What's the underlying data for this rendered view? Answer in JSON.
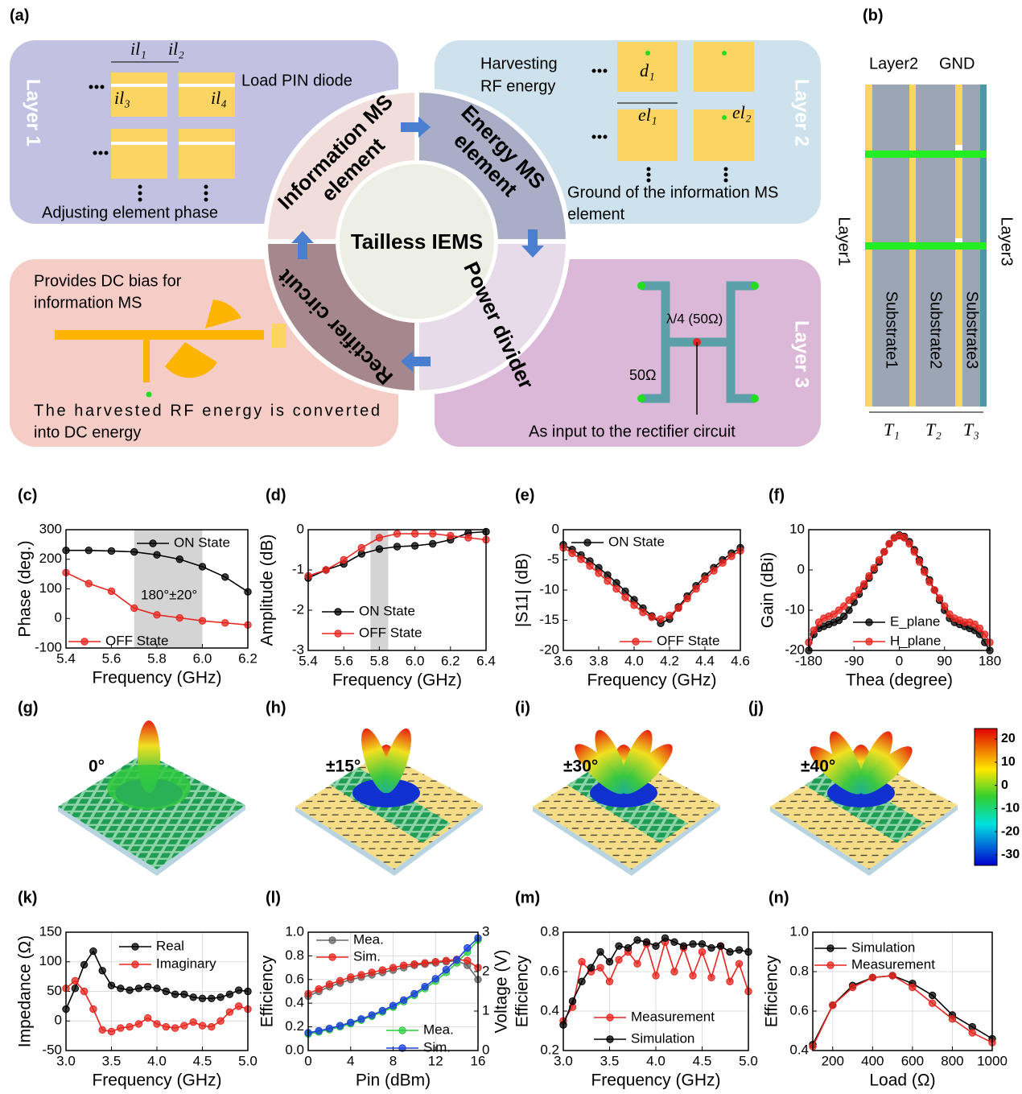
{
  "diagram": {
    "a": {
      "label": "(a)",
      "layer1": "Layer 1",
      "layer2": "Layer 2",
      "layer3": "Layer 3",
      "load": "Load PIN diode",
      "adjust": "Adjusting element phase",
      "harvest": [
        "Harvesting",
        "RF energy"
      ],
      "ground": [
        "Ground of the information MS",
        "element"
      ],
      "bias": [
        "Provides DC bias for",
        "information MS"
      ],
      "converted": [
        "The harvested RF energy is converted",
        "into DC energy"
      ],
      "input": "As input to the rectifier circuit",
      "center": "Tailless IEMS",
      "info": [
        "Information MS",
        "element"
      ],
      "energy": [
        "Energy MS",
        "element"
      ],
      "power": "Power divider",
      "rectifier": "Rectifier circuit",
      "quarter": "λ/4 (50Ω)",
      "ohm": "50Ω",
      "il1": "il₁",
      "il2": "il₂",
      "il3": "il₃",
      "il4": "il₄",
      "d1": "d₁",
      "el1": "el₁",
      "el2": "el₂"
    },
    "b": {
      "label": "(b)",
      "layer2": "Layer2",
      "gnd": "GND",
      "layer1": "Layer1",
      "layer3": "Layer3",
      "sub1": "Substrate1",
      "sub2": "Substrate2",
      "sub3": "Substrate3",
      "t1": "T₁",
      "t2": "T₂",
      "t3": "T₃"
    }
  },
  "patterns": {
    "panels": [
      "(g)",
      "(h)",
      "(i)",
      "(j)"
    ],
    "labels": [
      "0°",
      "±15°",
      "±30°",
      "±40°"
    ],
    "colorbar": {
      "ticks": [
        20,
        10,
        0,
        -10,
        -20,
        -30
      ]
    }
  },
  "chart_data": [
    {
      "type": "line",
      "label": "(c)",
      "xlabel": "Frequency (GHz)",
      "ylabel": "Phase (deg.)",
      "x": [
        5.4,
        5.5,
        5.6,
        5.7,
        5.8,
        5.9,
        6.0,
        6.1,
        6.2
      ],
      "xlim": [
        5.4,
        6.2
      ],
      "xticks": [
        5.4,
        5.6,
        5.8,
        {
          "value": 6,
          "label": "6.0"
        },
        6.2
      ],
      "ylim": [
        -100,
        300
      ],
      "yticks": [
        -100,
        0,
        100,
        200,
        300
      ],
      "shade": [
        5.7,
        6.0
      ],
      "annotation": "180°±20°",
      "grid": false,
      "series": [
        {
          "name": "ON State",
          "color": "#000000",
          "values": [
            230,
            230,
            228,
            225,
            215,
            200,
            175,
            140,
            90
          ]
        },
        {
          "name": "OFF State",
          "color": "#e8251f",
          "values": [
            155,
            118,
            92,
            35,
            12,
            2,
            -8,
            -15,
            -22
          ]
        }
      ]
    },
    {
      "type": "line",
      "label": "(d)",
      "xlabel": "Frequency (GHz)",
      "ylabel": "Amplitude (dB)",
      "x": [
        5.4,
        5.5,
        5.6,
        5.7,
        5.8,
        5.9,
        6.0,
        6.1,
        6.2,
        6.3,
        6.4
      ],
      "xlim": [
        5.4,
        6.4
      ],
      "xticks": [
        5.4,
        5.6,
        5.8,
        {
          "value": 6,
          "label": "6.0"
        },
        6.2,
        6.4
      ],
      "ylim": [
        -3,
        0
      ],
      "yticks": [
        -3,
        -2,
        -1,
        0
      ],
      "shade": [
        5.75,
        5.85
      ],
      "grid": false,
      "series": [
        {
          "name": "ON State",
          "color": "#000000",
          "values": [
            -1.2,
            -1.0,
            -0.85,
            -0.6,
            -0.48,
            -0.42,
            -0.4,
            -0.35,
            -0.25,
            -0.08,
            -0.05
          ]
        },
        {
          "name": "OFF State",
          "color": "#e8251f",
          "values": [
            -1.15,
            -1.0,
            -0.75,
            -0.45,
            -0.2,
            -0.1,
            -0.1,
            -0.1,
            -0.15,
            -0.2,
            -0.25
          ]
        }
      ]
    },
    {
      "type": "line",
      "label": "(e)",
      "xlabel": "Frequency (GHz)",
      "ylabel": "|S11| (dB)",
      "x": [
        3.6,
        3.65,
        3.7,
        3.75,
        3.8,
        3.85,
        3.9,
        3.95,
        4.0,
        4.05,
        4.1,
        4.15,
        4.2,
        4.25,
        4.3,
        4.35,
        4.4,
        4.45,
        4.5,
        4.55,
        4.6
      ],
      "xlim": [
        3.6,
        4.6
      ],
      "xticks": [
        3.6,
        3.8,
        {
          "value": 4,
          "label": "4.0"
        },
        4.2,
        4.4,
        4.6
      ],
      "ylim": [
        -20,
        0
      ],
      "yticks": [
        -20,
        -15,
        -10,
        -5,
        0
      ],
      "grid": false,
      "series": [
        {
          "name": "ON State",
          "color": "#000000",
          "values": [
            -2.5,
            -3.3,
            -4.2,
            -5.2,
            -6.3,
            -7.5,
            -8.8,
            -10.2,
            -11.6,
            -13,
            -14.3,
            -15.5,
            -14.8,
            -12.8,
            -11,
            -9.3,
            -7.7,
            -6.3,
            -5,
            -3.9,
            -3
          ]
        },
        {
          "name": "OFF State",
          "color": "#e8251f",
          "values": [
            -3,
            -3.9,
            -4.9,
            -6,
            -7.2,
            -8.5,
            -9.8,
            -11.2,
            -12.5,
            -13.7,
            -14.5,
            -14.8,
            -14.2,
            -13,
            -11.4,
            -9.8,
            -8.2,
            -6.8,
            -5.5,
            -4.4,
            -3.5
          ]
        }
      ]
    },
    {
      "type": "line",
      "label": "(f)",
      "xlabel": "Thea (degree)",
      "ylabel": "Gain (dBi)",
      "x": [
        -180,
        -170,
        -160,
        -150,
        -140,
        -130,
        -120,
        -110,
        -100,
        -90,
        -80,
        -70,
        -60,
        -50,
        -40,
        -30,
        -20,
        -10,
        0,
        10,
        20,
        30,
        40,
        50,
        60,
        70,
        80,
        90,
        100,
        110,
        120,
        130,
        140,
        150,
        160,
        170,
        180
      ],
      "xlim": [
        -180,
        180
      ],
      "xticks": [
        -180,
        -90,
        0,
        90,
        180
      ],
      "ylim": [
        -20,
        10
      ],
      "yticks": [
        -20,
        -10,
        0,
        10
      ],
      "grid": false,
      "series": [
        {
          "name": "E_plane",
          "color": "#000000",
          "values": [
            -20,
            -16,
            -14.5,
            -14,
            -13.5,
            -13,
            -12.5,
            -11.5,
            -10,
            -8,
            -6,
            -4,
            -2,
            0,
            2,
            4.5,
            6.5,
            8,
            8.7,
            8.3,
            7,
            5,
            2.5,
            0,
            -2.5,
            -5,
            -7.5,
            -10,
            -12,
            -13,
            -13.5,
            -14,
            -14.5,
            -15,
            -16,
            -18,
            -20
          ]
        },
        {
          "name": "H_plane",
          "color": "#e8251f",
          "values": [
            -18,
            -15,
            -13,
            -12,
            -11.5,
            -11,
            -10,
            -9,
            -7.5,
            -6.5,
            -5,
            -3.5,
            -1.5,
            0.5,
            2.5,
            4.5,
            6.5,
            8,
            8.5,
            8,
            6.5,
            4.5,
            2,
            -0.5,
            -3,
            -5,
            -7,
            -9,
            -11,
            -12,
            -12.5,
            -13,
            -13,
            -13.5,
            -14.5,
            -16,
            -18
          ]
        }
      ]
    },
    {
      "type": "line",
      "label": "(k)",
      "xlabel": "Frequency (GHz)",
      "ylabel": "Impedance (Ω)",
      "x": [
        3.0,
        3.1,
        3.2,
        3.3,
        3.4,
        3.5,
        3.6,
        3.7,
        3.8,
        3.9,
        4.0,
        4.1,
        4.2,
        4.3,
        4.4,
        4.5,
        4.6,
        4.7,
        4.8,
        4.9,
        5.0
      ],
      "xlim": [
        3,
        5
      ],
      "xticks": [
        {
          "value": 3,
          "label": "3.0"
        },
        3.5,
        {
          "value": 4,
          "label": "4.0"
        },
        4.5,
        {
          "value": 5,
          "label": "5.0"
        }
      ],
      "ylim": [
        -50,
        150
      ],
      "yticks": [
        -50,
        0,
        50,
        100,
        150
      ],
      "grid": true,
      "series": [
        {
          "name": "Real",
          "color": "#000000",
          "values": [
            20,
            55,
            95,
            118,
            85,
            60,
            55,
            52,
            55,
            58,
            55,
            50,
            45,
            45,
            40,
            38,
            38,
            40,
            45,
            52,
            50
          ]
        },
        {
          "name": "Imaginary",
          "color": "#e8251f",
          "values": [
            55,
            68,
            50,
            20,
            -15,
            -18,
            -12,
            -10,
            -5,
            5,
            -5,
            -10,
            -12,
            -8,
            -2,
            -8,
            -10,
            0,
            15,
            25,
            20
          ]
        }
      ]
    },
    {
      "type": "line",
      "label": "(l)",
      "xlabel": "Pin (dBm)",
      "ylabel": "Efficiency",
      "y2label": "Voltage (V)",
      "x": [
        0,
        1,
        2,
        3,
        4,
        5,
        6,
        7,
        8,
        9,
        10,
        11,
        12,
        13,
        14,
        15,
        16
      ],
      "xlim": [
        0,
        16
      ],
      "xticks": [
        0,
        4,
        8,
        12,
        16
      ],
      "ylim": [
        0,
        1
      ],
      "yticks": [
        {
          "value": 0,
          "label": "0.0"
        },
        0.2,
        0.4,
        0.6,
        0.8,
        {
          "value": 1,
          "label": "1.0"
        }
      ],
      "y2lim": [
        0,
        3
      ],
      "y2ticks": [
        0,
        1,
        2,
        3
      ],
      "grid": true,
      "series": [
        {
          "name": "Mea.",
          "color": "#666666",
          "values": [
            0.46,
            0.5,
            0.54,
            0.57,
            0.6,
            0.62,
            0.64,
            0.66,
            0.68,
            0.7,
            0.72,
            0.73,
            0.74,
            0.75,
            0.76,
            0.72,
            0.6
          ]
        },
        {
          "name": "Sim.",
          "color": "#e8251f",
          "values": [
            0.48,
            0.52,
            0.56,
            0.59,
            0.62,
            0.64,
            0.66,
            0.68,
            0.7,
            0.72,
            0.73,
            0.74,
            0.75,
            0.76,
            0.77,
            0.76,
            0.7
          ]
        },
        {
          "name": "Mea.",
          "color": "#2ecc40",
          "axis": "y2",
          "values": [
            0.42,
            0.47,
            0.53,
            0.6,
            0.68,
            0.77,
            0.87,
            0.98,
            1.1,
            1.24,
            1.4,
            1.57,
            1.76,
            1.98,
            2.22,
            2.5,
            2.8
          ]
        },
        {
          "name": "Sim.",
          "color": "#1f3fdf",
          "axis": "y2",
          "values": [
            0.45,
            0.5,
            0.56,
            0.63,
            0.71,
            0.8,
            0.9,
            1.01,
            1.14,
            1.28,
            1.44,
            1.62,
            1.82,
            2.05,
            2.3,
            2.6,
            2.85
          ]
        }
      ]
    },
    {
      "type": "line",
      "label": "(m)",
      "xlabel": "Frequency (GHz)",
      "ylabel": "Efficiency",
      "x": [
        3.0,
        3.1,
        3.2,
        3.3,
        3.4,
        3.5,
        3.6,
        3.7,
        3.8,
        3.9,
        4.0,
        4.1,
        4.2,
        4.3,
        4.4,
        4.5,
        4.6,
        4.7,
        4.8,
        4.9,
        5.0
      ],
      "xlim": [
        3,
        5
      ],
      "xticks": [
        {
          "value": 3,
          "label": "3.0"
        },
        3.5,
        {
          "value": 4,
          "label": "4.0"
        },
        4.5,
        {
          "value": 5,
          "label": "5.0"
        }
      ],
      "ylim": [
        0.2,
        0.8
      ],
      "yticks": [
        0.2,
        0.4,
        0.6,
        0.8
      ],
      "grid": true,
      "series": [
        {
          "name": "Measurement",
          "color": "#e8251f",
          "values": [
            0.35,
            0.42,
            0.65,
            0.6,
            0.62,
            0.55,
            0.66,
            0.7,
            0.64,
            0.74,
            0.58,
            0.75,
            0.6,
            0.72,
            0.58,
            0.7,
            0.57,
            0.73,
            0.55,
            0.64,
            0.5
          ]
        },
        {
          "name": "Simulation",
          "color": "#000000",
          "values": [
            0.33,
            0.45,
            0.55,
            0.62,
            0.7,
            0.65,
            0.73,
            0.72,
            0.76,
            0.75,
            0.73,
            0.77,
            0.75,
            0.73,
            0.74,
            0.74,
            0.72,
            0.73,
            0.7,
            0.71,
            0.7
          ]
        }
      ]
    },
    {
      "type": "line",
      "label": "(n)",
      "xlabel": "Load (Ω)",
      "ylabel": "Efficiency",
      "x": [
        100,
        200,
        300,
        400,
        500,
        600,
        700,
        800,
        900,
        1000
      ],
      "xlim": [
        100,
        1000
      ],
      "xticks": [
        200,
        400,
        600,
        800,
        1000
      ],
      "ylim": [
        0.4,
        1
      ],
      "yticks": [
        0.4,
        0.6,
        0.8,
        {
          "value": 1,
          "label": "1.0"
        }
      ],
      "grid": true,
      "series": [
        {
          "name": "Simulation",
          "color": "#000000",
          "values": [
            0.43,
            0.63,
            0.73,
            0.77,
            0.78,
            0.74,
            0.68,
            0.58,
            0.52,
            0.46
          ]
        },
        {
          "name": "Measurement",
          "color": "#e8251f",
          "values": [
            0.42,
            0.63,
            0.72,
            0.77,
            0.78,
            0.72,
            0.64,
            0.56,
            0.49,
            0.44
          ]
        }
      ]
    }
  ]
}
